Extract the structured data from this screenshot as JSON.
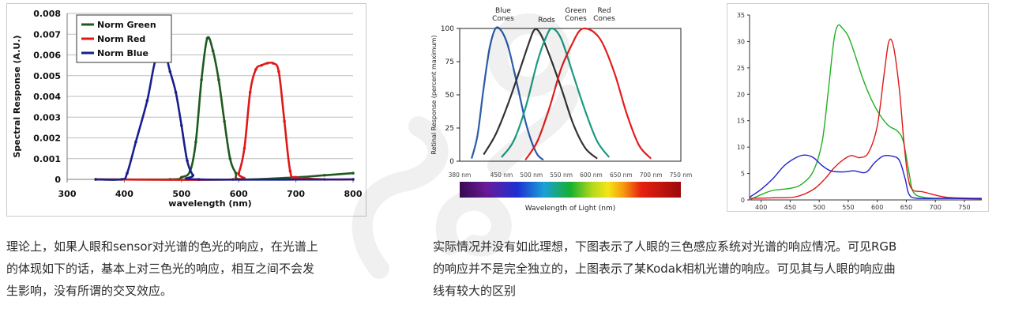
{
  "chart_data": [
    {
      "type": "line",
      "title": "",
      "xlabel": "wavelength (nm)",
      "ylabel": "Spectral Response (A.U.)",
      "xlim": [
        300,
        800
      ],
      "ylim": [
        0,
        0.008
      ],
      "x_ticks": [
        300,
        400,
        500,
        600,
        700,
        800
      ],
      "y_ticks": [
        "0",
        "0.001",
        "0.002",
        "0.003",
        "0.004",
        "0.005",
        "0.006",
        "0.007",
        "0.008"
      ],
      "grid": true,
      "legend_position": "top-left",
      "series": [
        {
          "name": "Norm Green",
          "color": "#1e5a1e",
          "points": [
            [
              350,
              0
            ],
            [
              480,
              0
            ],
            [
              500,
              0.0001
            ],
            [
              515,
              0.0004
            ],
            [
              525,
              0.0018
            ],
            [
              535,
              0.0048
            ],
            [
              545,
              0.0068
            ],
            [
              555,
              0.0062
            ],
            [
              565,
              0.0048
            ],
            [
              575,
              0.0028
            ],
            [
              585,
              0.001
            ],
            [
              595,
              0.0003
            ],
            [
              605,
              0
            ],
            [
              700,
              0.0001
            ],
            [
              750,
              0.0002
            ],
            [
              800,
              0.0003
            ]
          ]
        },
        {
          "name": "Norm Red",
          "color": "#e01818",
          "points": [
            [
              350,
              0
            ],
            [
              590,
              0
            ],
            [
              600,
              0.0003
            ],
            [
              610,
              0.0015
            ],
            [
              620,
              0.0042
            ],
            [
              630,
              0.0053
            ],
            [
              640,
              0.0055
            ],
            [
              650,
              0.0056
            ],
            [
              660,
              0.0056
            ],
            [
              670,
              0.0052
            ],
            [
              680,
              0.0028
            ],
            [
              690,
              0.0004
            ],
            [
              700,
              0.0001
            ],
            [
              750,
              0
            ],
            [
              800,
              0
            ]
          ]
        },
        {
          "name": "Norm Blue",
          "color": "#1a1e8c",
          "points": [
            [
              350,
              0
            ],
            [
              395,
              0
            ],
            [
              405,
              0.0003
            ],
            [
              420,
              0.0018
            ],
            [
              440,
              0.0038
            ],
            [
              455,
              0.0058
            ],
            [
              470,
              0.0061
            ],
            [
              480,
              0.0052
            ],
            [
              490,
              0.0042
            ],
            [
              500,
              0.0026
            ],
            [
              510,
              0.0009
            ],
            [
              520,
              0.0002
            ],
            [
              530,
              0
            ],
            [
              800,
              0
            ]
          ]
        }
      ]
    },
    {
      "type": "line",
      "title": "",
      "xlabel": "Wavelength of Light (nm)",
      "ylabel": "Retinal Response (percent maximum)",
      "xlim": [
        380,
        750
      ],
      "ylim": [
        0,
        100
      ],
      "x_ticks": [
        "380 nm",
        "450 nm",
        "500 nm",
        "550 nm",
        "600 nm",
        "650 nm",
        "700 nm",
        "750 nm"
      ],
      "x_tick_values": [
        380,
        450,
        500,
        550,
        600,
        650,
        700,
        750
      ],
      "y_ticks": [
        "0",
        "25",
        "50",
        "75",
        "100"
      ],
      "grid": false,
      "annotations": [
        "Blue Cones",
        "Rods",
        "Green Cones",
        "Red Cones"
      ],
      "series": [
        {
          "color": "#2b5ca8",
          "points": [
            [
              400,
              2
            ],
            [
              410,
              20
            ],
            [
              420,
              55
            ],
            [
              430,
              85
            ],
            [
              440,
              100
            ],
            [
              450,
              98
            ],
            [
              460,
              88
            ],
            [
              470,
              70
            ],
            [
              480,
              50
            ],
            [
              490,
              30
            ],
            [
              500,
              15
            ],
            [
              510,
              5
            ],
            [
              520,
              1
            ]
          ]
        },
        {
          "color": "#333333",
          "points": [
            [
              420,
              5
            ],
            [
              440,
              20
            ],
            [
              460,
              42
            ],
            [
              480,
              68
            ],
            [
              495,
              88
            ],
            [
              505,
              99
            ],
            [
              515,
              96
            ],
            [
              530,
              80
            ],
            [
              550,
              55
            ],
            [
              570,
              28
            ],
            [
              590,
              10
            ],
            [
              610,
              2
            ]
          ]
        },
        {
          "color": "#1a9a80",
          "points": [
            [
              450,
              3
            ],
            [
              470,
              15
            ],
            [
              490,
              40
            ],
            [
              510,
              75
            ],
            [
              525,
              94
            ],
            [
              535,
              100
            ],
            [
              550,
              92
            ],
            [
              570,
              65
            ],
            [
              590,
              38
            ],
            [
              610,
              15
            ],
            [
              630,
              3
            ]
          ]
        },
        {
          "color": "#e31c1c",
          "points": [
            [
              490,
              1
            ],
            [
              510,
              15
            ],
            [
              530,
              40
            ],
            [
              550,
              70
            ],
            [
              570,
              90
            ],
            [
              580,
              98
            ],
            [
              590,
              100
            ],
            [
              605,
              97
            ],
            [
              620,
              88
            ],
            [
              640,
              65
            ],
            [
              660,
              35
            ],
            [
              680,
              12
            ],
            [
              700,
              2
            ]
          ]
        }
      ]
    },
    {
      "type": "line",
      "title": "",
      "xlabel": "",
      "ylabel": "",
      "xlim": [
        380,
        780
      ],
      "ylim": [
        0,
        35
      ],
      "x_ticks": [
        "400",
        "450",
        "500",
        "550",
        "600",
        "650",
        "700",
        "750"
      ],
      "y_ticks": [
        "0",
        "5",
        "10",
        "15",
        "20",
        "25",
        "30",
        "35"
      ],
      "grid": false,
      "series": [
        {
          "color": "#22b022",
          "points": [
            [
              380,
              0
            ],
            [
              400,
              1
            ],
            [
              420,
              1.8
            ],
            [
              450,
              2.2
            ],
            [
              470,
              3
            ],
            [
              490,
              5.5
            ],
            [
              505,
              11
            ],
            [
              515,
              20
            ],
            [
              525,
              30
            ],
            [
              532,
              33
            ],
            [
              540,
              32.5
            ],
            [
              550,
              31
            ],
            [
              560,
              28
            ],
            [
              575,
              23
            ],
            [
              590,
              19
            ],
            [
              605,
              16
            ],
            [
              620,
              14
            ],
            [
              635,
              13
            ],
            [
              645,
              11
            ],
            [
              655,
              5
            ],
            [
              662,
              1.5
            ],
            [
              680,
              0.5
            ],
            [
              720,
              0.3
            ],
            [
              780,
              0.3
            ]
          ]
        },
        {
          "color": "#e01818",
          "points": [
            [
              380,
              0.3
            ],
            [
              420,
              0.4
            ],
            [
              460,
              0.6
            ],
            [
              490,
              2
            ],
            [
              510,
              4
            ],
            [
              525,
              6
            ],
            [
              540,
              7.5
            ],
            [
              555,
              8.4
            ],
            [
              570,
              8
            ],
            [
              585,
              9
            ],
            [
              600,
              14
            ],
            [
              612,
              24
            ],
            [
              620,
              30
            ],
            [
              628,
              29
            ],
            [
              638,
              21
            ],
            [
              645,
              12
            ],
            [
              652,
              5
            ],
            [
              660,
              2
            ],
            [
              680,
              1.5
            ],
            [
              720,
              0.5
            ],
            [
              780,
              0.3
            ]
          ]
        },
        {
          "color": "#2222cc",
          "points": [
            [
              380,
              0.5
            ],
            [
              400,
              2
            ],
            [
              420,
              4
            ],
            [
              440,
              6.5
            ],
            [
              460,
              8
            ],
            [
              475,
              8.5
            ],
            [
              490,
              8
            ],
            [
              505,
              6.5
            ],
            [
              520,
              5.5
            ],
            [
              540,
              5.3
            ],
            [
              560,
              5.5
            ],
            [
              580,
              5.2
            ],
            [
              595,
              7
            ],
            [
              610,
              8.3
            ],
            [
              625,
              8.3
            ],
            [
              638,
              7.5
            ],
            [
              648,
              4
            ],
            [
              655,
              1
            ],
            [
              670,
              0.3
            ],
            [
              720,
              0.3
            ],
            [
              780,
              0.2
            ]
          ]
        }
      ]
    }
  ],
  "text": {
    "left_lines": [
      "理论上，如果人眼和sensor对光谱的色光的响应，在光谱上",
      "的体现如下的话，基本上对三色光的响应，相互之间不会发",
      "生影响，没有所谓的交叉效应。"
    ],
    "right_lines": [
      "实际情况并没有如此理想，下图表示了人眼的三色感应系统对光谱的响应情况。可见RGB",
      "的响应并不是完全独立的，上图表示了某Kodak相机光谱的响应。可见其与人眼的响应曲",
      "线有较大的区别"
    ]
  }
}
